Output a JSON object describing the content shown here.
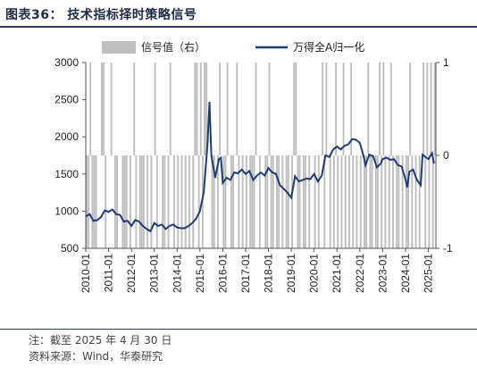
{
  "title": "图表36：  技术指标择时策略信号",
  "note": "注：截至 2025 年 4 月 30 日",
  "source": "资料来源：Wind，华泰研究",
  "colors": {
    "signal": "#bfbfbf",
    "index": "#1f3b73",
    "rule": "#2b3a5a"
  },
  "chart_data": {
    "type": "bar+line",
    "series": [
      {
        "name": "信号值（右）",
        "type": "bar",
        "axis": "right"
      },
      {
        "name": "万得全A归一化",
        "type": "line",
        "axis": "left"
      }
    ],
    "y_left": {
      "min": 500,
      "max": 3000,
      "ticks": [
        "3000",
        "2500",
        "2000",
        "1500",
        "1000",
        "500"
      ]
    },
    "y_right": {
      "min": -1,
      "max": 1,
      "ticks": [
        "1",
        "0",
        "-1"
      ]
    },
    "x_ticks": [
      "2010-01",
      "2011-01",
      "2012-01",
      "2013-01",
      "2014-01",
      "2015-01",
      "2016-01",
      "2017-01",
      "2018-01",
      "2019-01",
      "2020-01",
      "2021-01",
      "2022-01",
      "2023-01",
      "2024-01",
      "2025-01"
    ],
    "x_range": [
      "2010-01",
      "2025-04"
    ],
    "legend_position": "top",
    "index_points": [
      [
        "2010-01",
        930
      ],
      [
        "2010-03",
        960
      ],
      [
        "2010-05",
        870
      ],
      [
        "2010-07",
        880
      ],
      [
        "2010-09",
        920
      ],
      [
        "2010-11",
        1010
      ],
      [
        "2011-01",
        990
      ],
      [
        "2011-03",
        1020
      ],
      [
        "2011-05",
        960
      ],
      [
        "2011-07",
        950
      ],
      [
        "2011-09",
        860
      ],
      [
        "2011-11",
        870
      ],
      [
        "2012-01",
        800
      ],
      [
        "2012-03",
        880
      ],
      [
        "2012-05",
        860
      ],
      [
        "2012-07",
        800
      ],
      [
        "2012-09",
        760
      ],
      [
        "2012-11",
        730
      ],
      [
        "2013-01",
        840
      ],
      [
        "2013-03",
        800
      ],
      [
        "2013-05",
        820
      ],
      [
        "2013-07",
        760
      ],
      [
        "2013-09",
        800
      ],
      [
        "2013-11",
        820
      ],
      [
        "2014-01",
        780
      ],
      [
        "2014-03",
        770
      ],
      [
        "2014-05",
        770
      ],
      [
        "2014-07",
        800
      ],
      [
        "2014-09",
        840
      ],
      [
        "2014-11",
        900
      ],
      [
        "2015-01",
        1000
      ],
      [
        "2015-03",
        1250
      ],
      [
        "2015-05",
        1900
      ],
      [
        "2015-06",
        2470
      ],
      [
        "2015-07",
        1750
      ],
      [
        "2015-09",
        1450
      ],
      [
        "2015-11",
        1700
      ],
      [
        "2015-12",
        1720
      ],
      [
        "2016-01",
        1380
      ],
      [
        "2016-03",
        1450
      ],
      [
        "2016-05",
        1420
      ],
      [
        "2016-07",
        1520
      ],
      [
        "2016-09",
        1510
      ],
      [
        "2016-11",
        1560
      ],
      [
        "2017-01",
        1500
      ],
      [
        "2017-03",
        1540
      ],
      [
        "2017-05",
        1420
      ],
      [
        "2017-07",
        1480
      ],
      [
        "2017-09",
        1520
      ],
      [
        "2017-11",
        1480
      ],
      [
        "2018-01",
        1580
      ],
      [
        "2018-03",
        1520
      ],
      [
        "2018-05",
        1500
      ],
      [
        "2018-07",
        1350
      ],
      [
        "2018-09",
        1300
      ],
      [
        "2018-11",
        1250
      ],
      [
        "2019-01",
        1180
      ],
      [
        "2019-03",
        1470
      ],
      [
        "2019-05",
        1400
      ],
      [
        "2019-07",
        1420
      ],
      [
        "2019-09",
        1440
      ],
      [
        "2019-11",
        1430
      ],
      [
        "2020-01",
        1500
      ],
      [
        "2020-03",
        1400
      ],
      [
        "2020-05",
        1480
      ],
      [
        "2020-07",
        1750
      ],
      [
        "2020-09",
        1730
      ],
      [
        "2020-11",
        1830
      ],
      [
        "2021-01",
        1870
      ],
      [
        "2021-03",
        1830
      ],
      [
        "2021-05",
        1880
      ],
      [
        "2021-07",
        1900
      ],
      [
        "2021-09",
        1970
      ],
      [
        "2021-11",
        1960
      ],
      [
        "2022-01",
        1920
      ],
      [
        "2022-03",
        1740
      ],
      [
        "2022-04",
        1620
      ],
      [
        "2022-06",
        1760
      ],
      [
        "2022-08",
        1740
      ],
      [
        "2022-10",
        1590
      ],
      [
        "2022-12",
        1640
      ],
      [
        "2023-01",
        1700
      ],
      [
        "2023-03",
        1720
      ],
      [
        "2023-05",
        1690
      ],
      [
        "2023-07",
        1700
      ],
      [
        "2023-09",
        1620
      ],
      [
        "2023-11",
        1600
      ],
      [
        "2024-01",
        1430
      ],
      [
        "2024-02",
        1320
      ],
      [
        "2024-03",
        1530
      ],
      [
        "2024-05",
        1560
      ],
      [
        "2024-07",
        1420
      ],
      [
        "2024-09",
        1350
      ],
      [
        "2024-10",
        1760
      ],
      [
        "2024-12",
        1720
      ],
      [
        "2025-01",
        1700
      ],
      [
        "2025-03",
        1780
      ],
      [
        "2025-04",
        1640
      ]
    ],
    "signal_periods": [
      [
        "2010-01",
        -1
      ],
      [
        "2010-02",
        -1
      ],
      [
        "2010-04",
        -1
      ],
      [
        "2010-05",
        -1
      ],
      [
        "2010-06",
        -1
      ],
      [
        "2010-11",
        -1
      ],
      [
        "2011-04",
        -1
      ],
      [
        "2011-05",
        -1
      ],
      [
        "2011-08",
        -1
      ],
      [
        "2011-09",
        -1
      ],
      [
        "2011-10",
        -1
      ],
      [
        "2011-12",
        -1
      ],
      [
        "2012-03",
        -1
      ],
      [
        "2012-05",
        -1
      ],
      [
        "2012-06",
        -1
      ],
      [
        "2012-07",
        -1
      ],
      [
        "2012-09",
        -1
      ],
      [
        "2012-11",
        -1
      ],
      [
        "2013-02",
        -1
      ],
      [
        "2013-05",
        -1
      ],
      [
        "2013-06",
        -1
      ],
      [
        "2013-08",
        -1
      ],
      [
        "2013-11",
        -1
      ],
      [
        "2014-01",
        -1
      ],
      [
        "2014-03",
        -1
      ],
      [
        "2014-05",
        -1
      ],
      [
        "2014-07",
        -1
      ],
      [
        "2014-09",
        -1
      ],
      [
        "2014-12",
        -1
      ],
      [
        "2015-02",
        -1
      ],
      [
        "2015-07",
        -1
      ],
      [
        "2015-08",
        -1
      ],
      [
        "2015-10",
        -1
      ],
      [
        "2016-01",
        -1
      ],
      [
        "2016-02",
        -1
      ],
      [
        "2016-05",
        -1
      ],
      [
        "2016-06",
        -1
      ],
      [
        "2016-09",
        -1
      ],
      [
        "2016-11",
        -1
      ],
      [
        "2017-01",
        -1
      ],
      [
        "2017-03",
        -1
      ],
      [
        "2017-04",
        -1
      ],
      [
        "2017-05",
        -1
      ],
      [
        "2017-08",
        -1
      ],
      [
        "2017-11",
        -1
      ],
      [
        "2017-12",
        -1
      ],
      [
        "2018-02",
        -1
      ],
      [
        "2018-03",
        -1
      ],
      [
        "2018-05",
        -1
      ],
      [
        "2018-06",
        -1
      ],
      [
        "2018-08",
        -1
      ],
      [
        "2018-10",
        -1
      ],
      [
        "2018-11",
        -1
      ],
      [
        "2019-01",
        -1
      ],
      [
        "2019-04",
        -1
      ],
      [
        "2019-05",
        -1
      ],
      [
        "2019-07",
        -1
      ],
      [
        "2019-08",
        -1
      ],
      [
        "2019-10",
        -1
      ],
      [
        "2020-01",
        -1
      ],
      [
        "2020-03",
        -1
      ],
      [
        "2020-06",
        -1
      ],
      [
        "2020-09",
        -1
      ],
      [
        "2020-11",
        -1
      ],
      [
        "2021-01",
        -1
      ],
      [
        "2021-03",
        -1
      ],
      [
        "2021-05",
        -1
      ],
      [
        "2021-07",
        -1
      ],
      [
        "2021-09",
        -1
      ],
      [
        "2021-11",
        -1
      ],
      [
        "2022-01",
        -1
      ],
      [
        "2022-03",
        -1
      ],
      [
        "2022-04",
        -1
      ],
      [
        "2022-06",
        -1
      ],
      [
        "2022-07",
        -1
      ],
      [
        "2022-09",
        -1
      ],
      [
        "2022-10",
        -1
      ],
      [
        "2022-12",
        -1
      ],
      [
        "2023-02",
        -1
      ],
      [
        "2023-04",
        -1
      ],
      [
        "2023-06",
        -1
      ],
      [
        "2023-08",
        -1
      ],
      [
        "2023-09",
        -1
      ],
      [
        "2023-11",
        -1
      ],
      [
        "2024-01",
        -1
      ],
      [
        "2024-02",
        -1
      ],
      [
        "2024-04",
        -1
      ],
      [
        "2024-06",
        -1
      ],
      [
        "2024-08",
        -1
      ],
      [
        "2024-11",
        -1
      ],
      [
        "2025-01",
        -1
      ],
      [
        "2025-03",
        -1
      ],
      [
        "2010-03",
        1
      ],
      [
        "2010-09",
        1
      ],
      [
        "2010-10",
        1
      ],
      [
        "2011-02",
        1
      ],
      [
        "2012-02",
        1
      ],
      [
        "2013-01",
        1
      ],
      [
        "2013-09",
        1
      ],
      [
        "2014-10",
        1
      ],
      [
        "2014-11",
        1
      ],
      [
        "2015-01",
        1
      ],
      [
        "2015-03",
        1
      ],
      [
        "2015-04",
        1
      ],
      [
        "2015-11",
        1
      ],
      [
        "2016-03",
        1
      ],
      [
        "2016-08",
        1
      ],
      [
        "2017-06",
        1
      ],
      [
        "2018-01",
        1
      ],
      [
        "2019-02",
        1
      ],
      [
        "2019-03",
        1
      ],
      [
        "2020-05",
        1
      ],
      [
        "2020-07",
        1
      ],
      [
        "2020-12",
        1
      ],
      [
        "2021-04",
        1
      ],
      [
        "2021-08",
        1
      ],
      [
        "2022-05",
        1
      ],
      [
        "2022-11",
        1
      ],
      [
        "2023-01",
        1
      ],
      [
        "2023-05",
        1
      ],
      [
        "2024-03",
        1
      ],
      [
        "2024-10",
        1
      ],
      [
        "2024-12",
        1
      ],
      [
        "2025-02",
        1
      ],
      [
        "2025-04",
        1
      ]
    ]
  }
}
